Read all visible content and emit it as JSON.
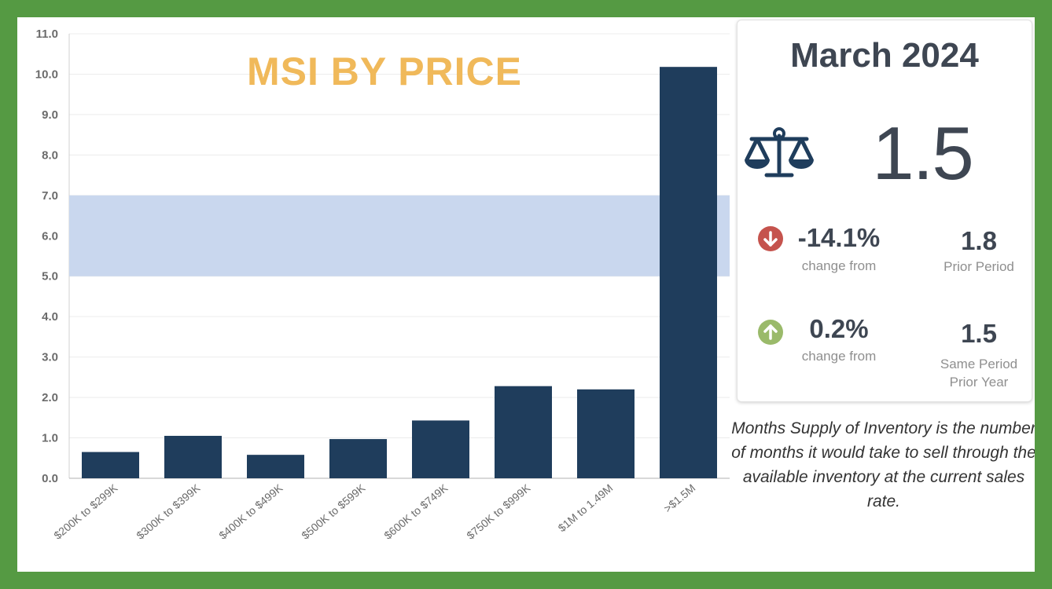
{
  "chart_data": {
    "type": "bar",
    "title": "MSI BY PRICE",
    "categories": [
      "$200K to $299K",
      "$300K to $399K",
      "$400K to $499K",
      "$500K to $599K",
      "$600K to $749K",
      "$750K to $999K",
      "$1M to 1.49M",
      ">$1.5M"
    ],
    "values": [
      0.65,
      1.05,
      0.58,
      0.97,
      1.43,
      2.28,
      2.2,
      10.18
    ],
    "ylim": [
      0,
      11
    ],
    "yticks": [
      "0.0",
      "1.0",
      "2.0",
      "3.0",
      "4.0",
      "5.0",
      "6.0",
      "7.0",
      "8.0",
      "9.0",
      "10.0",
      "11.0"
    ],
    "band": [
      5,
      7
    ],
    "xlabel": "",
    "ylabel": "",
    "grid": true,
    "colors": {
      "bar": "#1f3d5c",
      "band": "#c9d7ee",
      "title": "#f0b95a",
      "grid": "#ececec"
    }
  },
  "card": {
    "period": "March 2024",
    "icon": "balance-scale-icon",
    "value": "1.5",
    "prior_period": {
      "direction": "down",
      "icon": "arrow-down-icon",
      "change": "-14.1%",
      "caption": "change from",
      "value": "1.8",
      "label": "Prior Period"
    },
    "prior_year": {
      "direction": "up",
      "icon": "arrow-up-icon",
      "change": "0.2%",
      "caption": "change from",
      "value": "1.5",
      "label_line1": "Same Period",
      "label_line2": "Prior Year"
    }
  },
  "definition": "Months Supply of Inventory is the number of months it would take to sell through the available inventory at the current sales rate."
}
